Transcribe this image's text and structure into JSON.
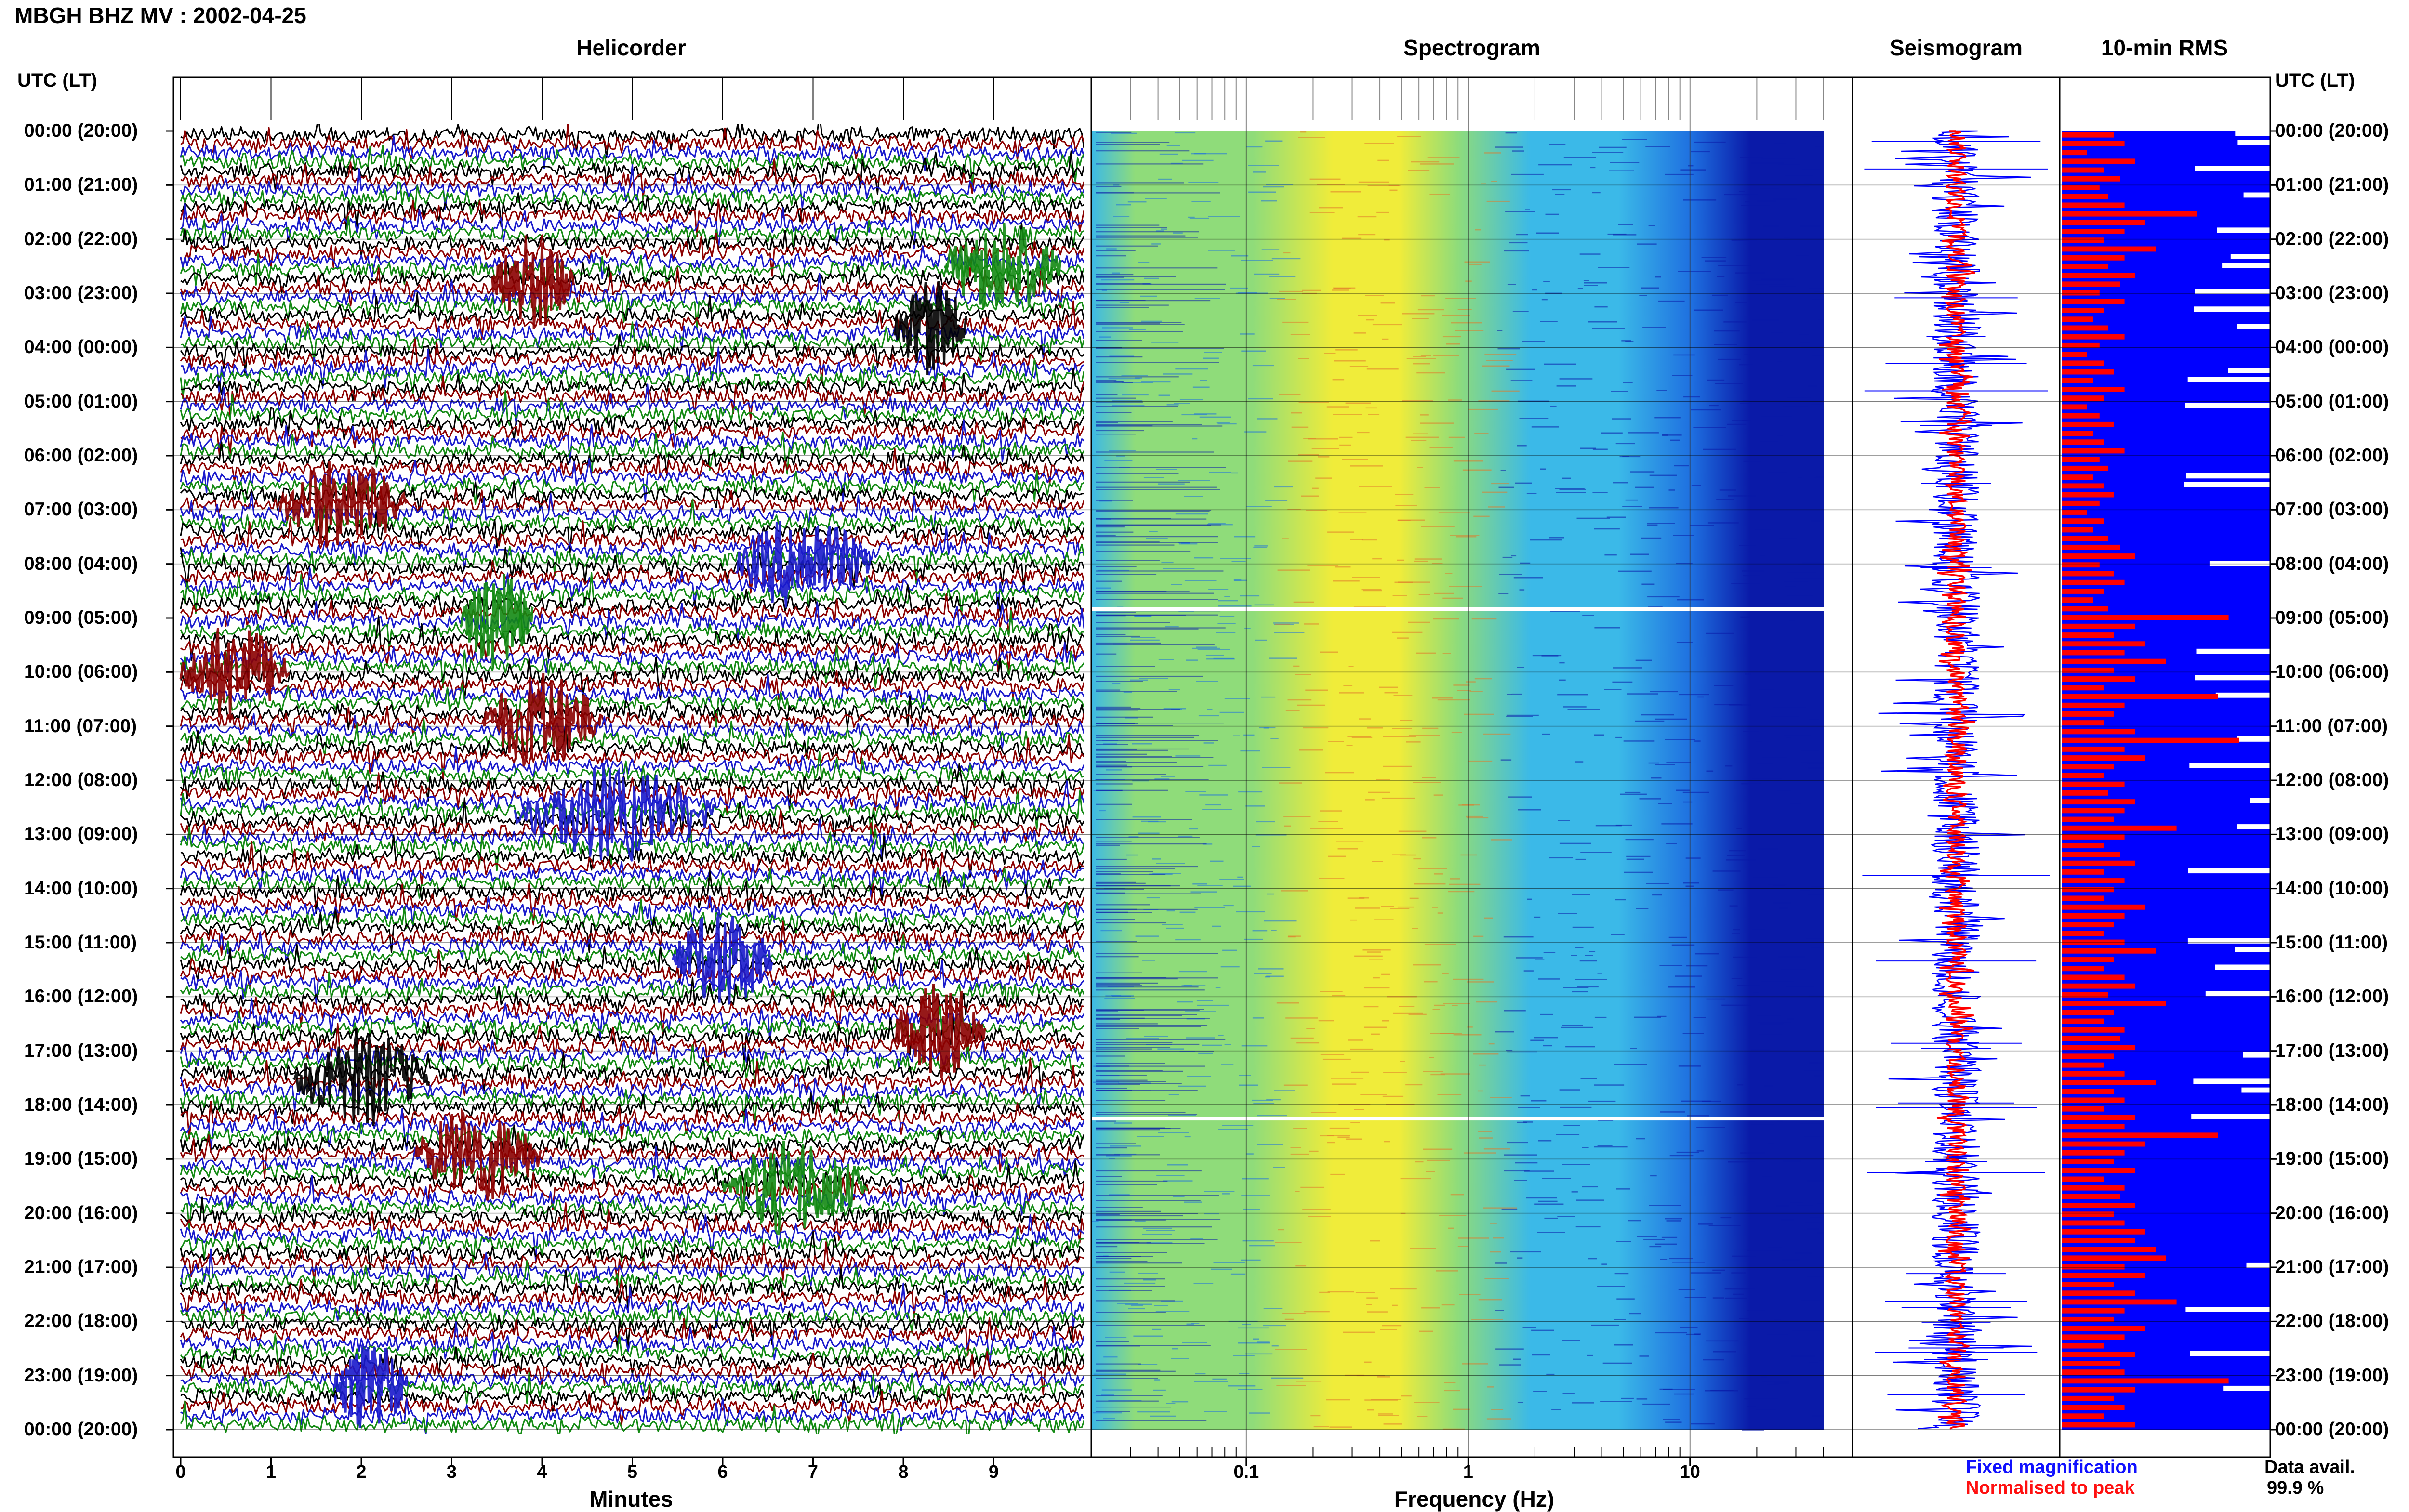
{
  "header": {
    "station_title": "MBGH BHZ MV : 2002-04-25"
  },
  "panels": {
    "helicorder": "Helicorder",
    "spectrogram": "Spectrogram",
    "seismogram": "Seismogram",
    "rms": "10-min RMS"
  },
  "y_axis_header_left": "UTC (LT)",
  "y_axis_header_right": "UTC (LT)",
  "chart_data": [
    {
      "type": "line",
      "title": "Helicorder",
      "xlabel": "Minutes",
      "x_ticks": [
        "0",
        "1",
        "2",
        "3",
        "4",
        "5",
        "6",
        "7",
        "8",
        "9"
      ],
      "xlim": [
        0,
        10
      ],
      "trace_colors": [
        "#000000",
        "#8b0000",
        "#1a1acc",
        "#138a13"
      ],
      "row_labels": [
        "00:00 (20:00)",
        "01:00 (21:00)",
        "02:00 (22:00)",
        "03:00 (23:00)",
        "04:00 (00:00)",
        "05:00 (01:00)",
        "06:00 (02:00)",
        "07:00 (03:00)",
        "08:00 (04:00)",
        "09:00 (05:00)",
        "10:00 (06:00)",
        "11:00 (07:00)",
        "12:00 (08:00)",
        "13:00 (09:00)",
        "14:00 (10:00)",
        "15:00 (11:00)",
        "16:00 (12:00)",
        "17:00 (13:00)",
        "18:00 (14:00)",
        "19:00 (15:00)",
        "20:00 (16:00)",
        "21:00 (17:00)",
        "22:00 (18:00)",
        "23:00 (19:00)",
        "00:00 (20:00)"
      ]
    },
    {
      "type": "heatmap",
      "title": "Spectrogram",
      "xlabel": "Frequency (Hz)",
      "x_scale": "log",
      "xlim": [
        0.02,
        40
      ],
      "x_ticks": [
        "0.1",
        "1",
        "10"
      ],
      "colormap": [
        "#0a1aa8",
        "#1e6fe0",
        "#3bb9e8",
        "#8fdc7a",
        "#f0ec3a",
        "#e07a2a",
        "#c0202a"
      ],
      "data_gaps_utc": [
        "08:50",
        "18:15"
      ]
    },
    {
      "type": "line",
      "title": "Seismogram",
      "series": [
        {
          "name": "Fixed magnification",
          "color": "#0000ff"
        },
        {
          "name": "Normalised to peak",
          "color": "#ff0000"
        }
      ]
    },
    {
      "type": "bar",
      "title": "10-min RMS",
      "series": [
        {
          "name": "Fixed magnification",
          "color": "#0000ff"
        },
        {
          "name": "Normalised to peak",
          "color": "#ff0000"
        }
      ],
      "data_availability_label": "Data avail.",
      "data_availability": "99.9 %",
      "red_rms_relative": [
        0.25,
        0.3,
        0.12,
        0.35,
        0.2,
        0.28,
        0.18,
        0.22,
        0.3,
        0.65,
        0.4,
        0.3,
        0.2,
        0.45,
        0.3,
        0.22,
        0.35,
        0.28,
        0.18,
        0.3,
        0.2,
        0.15,
        0.22,
        0.3,
        0.18,
        0.12,
        0.2,
        0.25,
        0.15,
        0.3,
        0.2,
        0.12,
        0.18,
        0.25,
        0.15,
        0.2,
        0.3,
        0.18,
        0.22,
        0.15,
        0.2,
        0.25,
        0.18,
        0.12,
        0.2,
        0.15,
        0.22,
        0.28,
        0.35,
        0.18,
        0.25,
        0.3,
        0.2,
        0.15,
        0.22,
        0.8,
        0.35,
        0.25,
        0.4,
        0.3,
        0.5,
        0.25,
        0.35,
        0.2,
        0.75,
        0.3,
        0.25,
        0.2,
        0.35,
        0.85,
        0.3,
        0.4,
        0.25,
        0.2,
        0.3,
        0.22,
        0.35,
        0.3,
        0.25,
        0.55,
        0.3,
        0.2,
        0.28,
        0.35,
        0.2,
        0.3,
        0.25,
        0.2,
        0.4,
        0.3,
        0.25,
        0.2,
        0.3,
        0.45,
        0.25,
        0.2,
        0.3,
        0.35,
        0.22,
        0.5,
        0.25,
        0.2,
        0.3,
        0.28,
        0.35,
        0.25,
        0.2,
        0.3,
        0.45,
        0.25,
        0.3,
        0.2,
        0.35,
        0.3,
        0.75,
        0.4,
        0.3,
        0.25,
        0.35,
        0.2,
        0.3,
        0.28,
        0.35,
        0.25,
        0.3,
        0.4,
        0.35,
        0.45,
        0.5,
        0.3,
        0.4,
        0.25,
        0.35,
        0.55,
        0.3,
        0.25,
        0.4,
        0.3,
        0.2,
        0.35,
        0.28,
        0.3,
        0.8,
        0.35,
        0.25,
        0.3,
        0.2,
        0.35
      ]
    }
  ]
}
